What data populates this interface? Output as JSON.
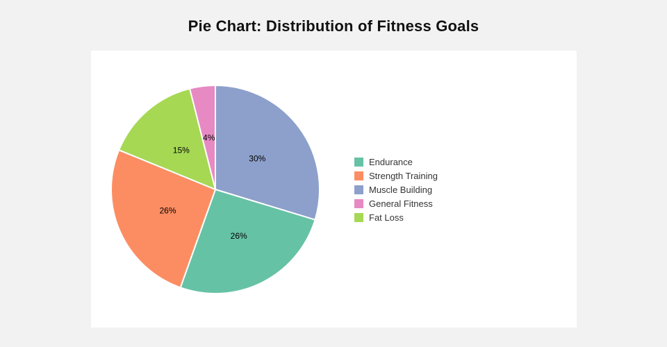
{
  "page": {
    "background_color": "#f2f2f2",
    "card_color": "#ffffff"
  },
  "chart_data": {
    "type": "pie",
    "title": "Pie Chart: Distribution of Fitness Goals",
    "direction": "clockwise",
    "start_angle_deg": 0,
    "label_radius_fraction": 0.5,
    "slice_border_color": "#ffffff",
    "label_color": "#000000",
    "legend_position": "right",
    "slices": [
      {
        "label": "Muscle Building",
        "value": 30,
        "percent_label": "30%",
        "color": "#8da0cb"
      },
      {
        "label": "Endurance",
        "value": 26,
        "percent_label": "26%",
        "color": "#66c2a5"
      },
      {
        "label": "Strength Training",
        "value": 26,
        "percent_label": "26%",
        "color": "#fc8d62"
      },
      {
        "label": "Fat Loss",
        "value": 15,
        "percent_label": "15%",
        "color": "#a6d854"
      },
      {
        "label": "General Fitness",
        "value": 4,
        "percent_label": "4%",
        "color": "#e78ac3"
      }
    ],
    "legend": [
      {
        "label": "Endurance",
        "color": "#66c2a5"
      },
      {
        "label": "Strength Training",
        "color": "#fc8d62"
      },
      {
        "label": "Muscle Building",
        "color": "#8da0cb"
      },
      {
        "label": "General Fitness",
        "color": "#e78ac3"
      },
      {
        "label": "Fat Loss",
        "color": "#a6d854"
      }
    ]
  }
}
